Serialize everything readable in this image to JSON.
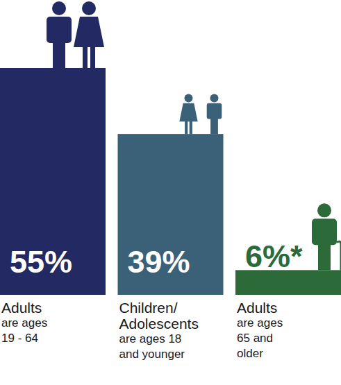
{
  "chart_data": {
    "type": "bar",
    "categories": [
      "Adults",
      "Children/ Adolescents",
      "Adults"
    ],
    "annotations": [
      [
        "are ages",
        "19 - 64"
      ],
      [
        "are ages 18",
        "and younger"
      ],
      [
        "are ages",
        "65 and",
        "older"
      ]
    ],
    "values": [
      55,
      39,
      6
    ],
    "value_labels": [
      "55%",
      "39%",
      "6%*"
    ],
    "colors": [
      "#232a63",
      "#3b6179",
      "#2c6a39"
    ],
    "data_labels": true,
    "tick_labels": false,
    "grid": false
  }
}
